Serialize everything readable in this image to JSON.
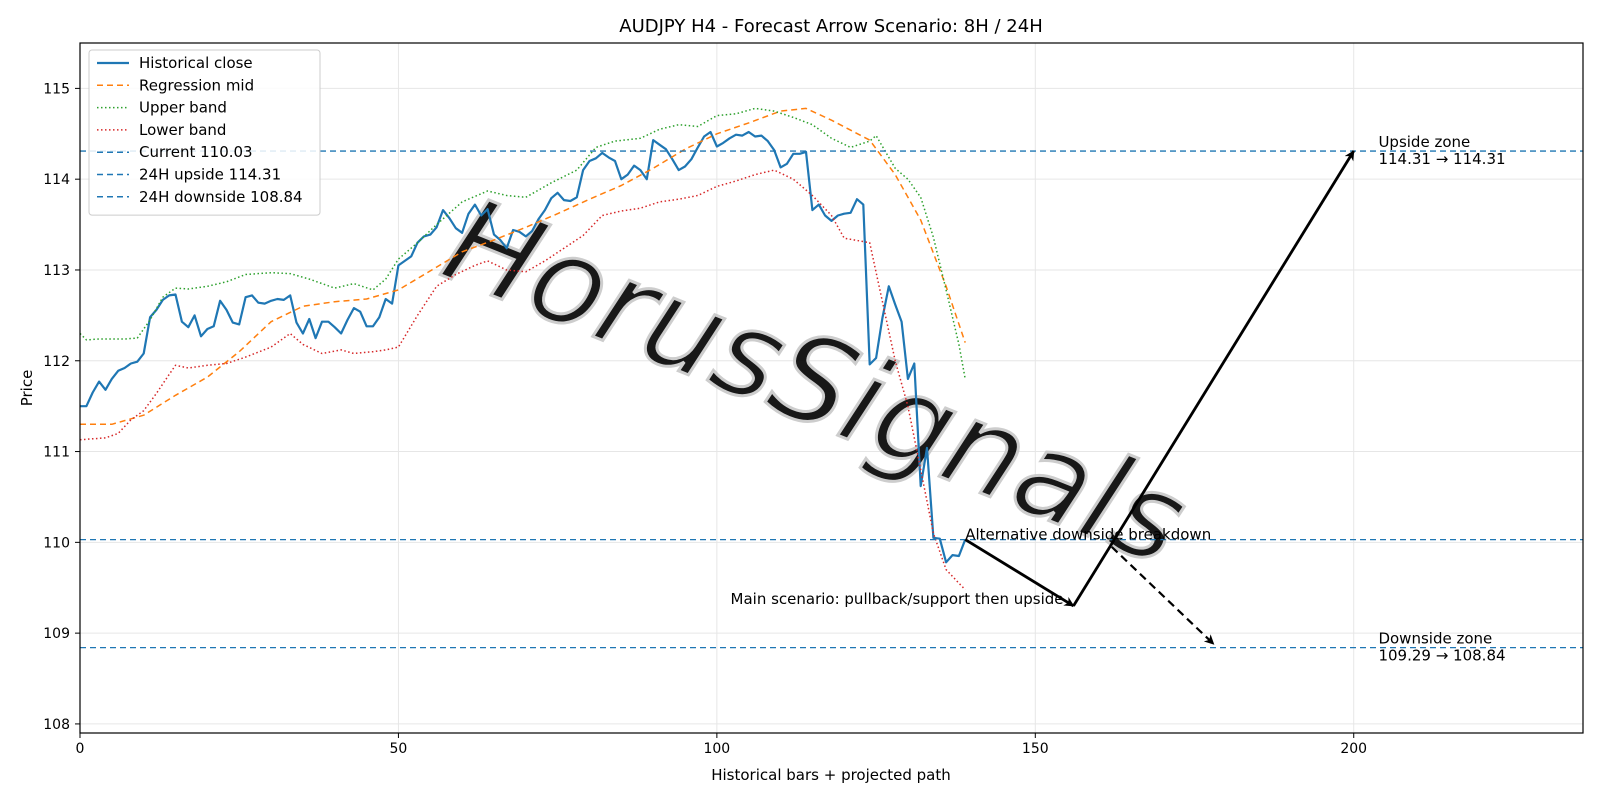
{
  "chart_data": {
    "type": "line",
    "title": "AUDJPY H4 - Forecast Arrow Scenario: 8H / 24H",
    "xlabel": "Historical bars + projected path",
    "ylabel": "Price",
    "xlim": [
      0,
      236
    ],
    "ylim": [
      107.9,
      115.5
    ],
    "xticks": [
      0,
      50,
      100,
      150,
      200
    ],
    "yticks": [
      108,
      109,
      110,
      111,
      112,
      113,
      114,
      115
    ],
    "grid": true,
    "legend_position": "top-left",
    "watermark": "HorusSignals",
    "series": [
      {
        "name": "Historical close",
        "style": "solid",
        "color": "#1f77b4",
        "x": [
          0,
          1,
          2,
          3,
          4,
          5,
          6,
          7,
          8,
          9,
          10,
          11,
          12,
          13,
          14,
          15,
          16,
          17,
          18,
          19,
          20,
          21,
          22,
          23,
          24,
          25,
          26,
          27,
          28,
          29,
          30,
          31,
          32,
          33,
          34,
          35,
          36,
          37,
          38,
          39,
          40,
          41,
          42,
          43,
          44,
          45,
          46,
          47,
          48,
          49,
          50,
          51,
          52,
          53,
          54,
          55,
          56,
          57,
          58,
          59,
          60,
          61,
          62,
          63,
          64,
          65,
          66,
          67,
          68,
          69,
          70,
          71,
          72,
          73,
          74,
          75,
          76,
          77,
          78,
          79,
          80,
          81,
          82,
          83,
          84,
          85,
          86,
          87,
          88,
          89,
          90,
          91,
          92,
          93,
          94,
          95,
          96,
          97,
          98,
          99,
          100,
          101,
          102,
          103,
          104,
          105,
          106,
          107,
          108,
          109,
          110,
          111,
          112,
          113,
          114,
          115,
          116,
          117,
          118,
          119,
          120,
          121,
          122,
          123,
          124,
          125,
          126,
          127,
          128,
          129,
          130,
          131,
          132,
          133,
          134,
          135,
          136,
          137,
          138,
          139
        ],
        "values": [
          111.5,
          111.5,
          111.65,
          111.77,
          111.68,
          111.8,
          111.89,
          111.92,
          111.97,
          111.99,
          112.08,
          112.48,
          112.56,
          112.67,
          112.72,
          112.73,
          112.43,
          112.37,
          112.5,
          112.27,
          112.35,
          112.38,
          112.66,
          112.56,
          112.42,
          112.4,
          112.7,
          112.72,
          112.64,
          112.63,
          112.66,
          112.68,
          112.67,
          112.72,
          112.42,
          112.3,
          112.46,
          112.25,
          112.43,
          112.43,
          112.37,
          112.3,
          112.45,
          112.58,
          112.54,
          112.38,
          112.38,
          112.48,
          112.68,
          112.63,
          113.05,
          113.1,
          113.15,
          113.3,
          113.37,
          113.39,
          113.47,
          113.66,
          113.57,
          113.46,
          113.41,
          113.62,
          113.72,
          113.6,
          113.67,
          113.39,
          113.33,
          113.24,
          113.44,
          113.42,
          113.37,
          113.43,
          113.56,
          113.66,
          113.79,
          113.85,
          113.77,
          113.76,
          113.8,
          114.1,
          114.2,
          114.23,
          114.29,
          114.24,
          114.2,
          114.0,
          114.05,
          114.15,
          114.1,
          114.0,
          114.43,
          114.38,
          114.33,
          114.22,
          114.1,
          114.14,
          114.22,
          114.35,
          114.47,
          114.52,
          114.36,
          114.4,
          114.45,
          114.49,
          114.48,
          114.52,
          114.47,
          114.48,
          114.42,
          114.32,
          114.13,
          114.17,
          114.28,
          114.28,
          114.3,
          113.66,
          113.72,
          113.6,
          113.54,
          113.6,
          113.62,
          113.63,
          113.78,
          113.72,
          111.96,
          112.03,
          112.47,
          112.82,
          112.62,
          112.43,
          111.8,
          111.97,
          110.62,
          111.04,
          110.05,
          110.04,
          109.78,
          109.86,
          109.85,
          110.03
        ]
      },
      {
        "name": "Regression mid",
        "style": "dashed",
        "color": "#ff7f0e",
        "x": [
          0,
          5,
          10,
          15,
          20,
          25,
          30,
          35,
          40,
          45,
          50,
          55,
          60,
          65,
          70,
          75,
          80,
          85,
          90,
          95,
          100,
          105,
          110,
          114,
          118,
          124,
          128,
          132,
          136,
          139
        ],
        "values": [
          111.3,
          111.3,
          111.4,
          111.62,
          111.82,
          112.1,
          112.43,
          112.6,
          112.65,
          112.68,
          112.78,
          112.99,
          113.2,
          113.33,
          113.47,
          113.62,
          113.78,
          113.93,
          114.12,
          114.33,
          114.5,
          114.62,
          114.75,
          114.78,
          114.65,
          114.43,
          114.05,
          113.55,
          112.82,
          112.2
        ]
      },
      {
        "name": "Upper band",
        "style": "dotted",
        "color": "#2ca02c",
        "x": [
          0,
          1,
          3,
          7,
          9,
          11,
          13,
          15,
          17,
          20,
          23,
          26,
          30,
          33,
          36,
          40,
          43,
          46,
          48,
          50,
          53,
          56,
          60,
          64,
          67,
          70,
          74,
          78,
          81,
          84,
          88,
          91,
          94,
          97,
          100,
          103,
          106,
          109,
          112,
          115,
          118,
          121,
          124,
          125,
          128,
          130,
          132,
          134,
          136,
          138,
          139
        ],
        "values": [
          112.3,
          112.23,
          112.24,
          112.24,
          112.25,
          112.45,
          112.7,
          112.8,
          112.79,
          112.82,
          112.87,
          112.95,
          112.97,
          112.96,
          112.9,
          112.8,
          112.85,
          112.78,
          112.9,
          113.12,
          113.3,
          113.5,
          113.75,
          113.87,
          113.82,
          113.8,
          113.96,
          114.1,
          114.35,
          114.42,
          114.45,
          114.55,
          114.6,
          114.58,
          114.7,
          114.72,
          114.78,
          114.75,
          114.68,
          114.6,
          114.45,
          114.35,
          114.42,
          114.48,
          114.12,
          114.0,
          113.8,
          113.36,
          112.78,
          112.18,
          111.8
        ]
      },
      {
        "name": "Lower band",
        "style": "dotted",
        "color": "#d62728",
        "x": [
          0,
          2,
          4,
          6,
          8,
          10,
          12,
          14,
          15,
          17,
          20,
          23,
          26,
          30,
          33,
          35,
          38,
          41,
          43,
          46,
          48,
          50,
          53,
          56,
          59,
          62,
          64,
          67,
          70,
          73,
          76,
          79,
          82,
          85,
          88,
          91,
          94,
          97,
          100,
          103,
          106,
          109,
          112,
          115,
          118,
          120,
          124,
          128,
          130,
          132,
          134,
          136,
          138,
          139
        ],
        "values": [
          111.13,
          111.14,
          111.15,
          111.2,
          111.35,
          111.45,
          111.64,
          111.85,
          111.95,
          111.92,
          111.95,
          111.97,
          112.04,
          112.15,
          112.3,
          112.18,
          112.08,
          112.12,
          112.08,
          112.1,
          112.12,
          112.15,
          112.5,
          112.82,
          112.95,
          113.05,
          113.1,
          113.0,
          112.98,
          113.1,
          113.24,
          113.38,
          113.6,
          113.65,
          113.68,
          113.75,
          113.78,
          113.82,
          113.92,
          113.98,
          114.05,
          114.1,
          114.0,
          113.82,
          113.6,
          113.35,
          113.3,
          112.0,
          111.5,
          110.8,
          110.1,
          109.7,
          109.55,
          109.48
        ]
      },
      {
        "name": "Current 110.03",
        "style": "dashed",
        "color": "#1f77b4",
        "hline": 110.03
      },
      {
        "name": "24H upside 114.31",
        "style": "dashed",
        "color": "#1f77b4",
        "hline": 114.31
      },
      {
        "name": "24H downside 108.84",
        "style": "dashed",
        "color": "#1f77b4",
        "hline": 108.84
      }
    ],
    "arrows": [
      {
        "name": "main-leg-1",
        "from": [
          139,
          110.03
        ],
        "to": [
          156,
          109.3
        ],
        "style": "solid"
      },
      {
        "name": "main-leg-2",
        "from": [
          156,
          109.3
        ],
        "to": [
          200,
          114.31
        ],
        "style": "solid"
      },
      {
        "name": "alt-leg",
        "from": [
          162,
          109.95
        ],
        "to": [
          178,
          108.88
        ],
        "style": "dashed"
      }
    ],
    "annotations": [
      {
        "name": "alt-label",
        "text": "Alternative downside breakdown",
        "x": 139,
        "y": 110.03
      },
      {
        "name": "main-label",
        "text": "Main scenario: pullback/support then upside",
        "x": 156,
        "y": 109.3
      },
      {
        "name": "upside-zone-label",
        "text": "Upside zone",
        "x": 202,
        "y": 114.31
      },
      {
        "name": "upside-zone-value",
        "text": "114.31 → 114.31",
        "x": 202,
        "y": 114.31
      },
      {
        "name": "downside-zone-label",
        "text": "Downside zone",
        "x": 202,
        "y": 108.84
      },
      {
        "name": "downside-zone-value",
        "text": "109.29 → 108.84",
        "x": 202,
        "y": 108.84
      }
    ]
  }
}
